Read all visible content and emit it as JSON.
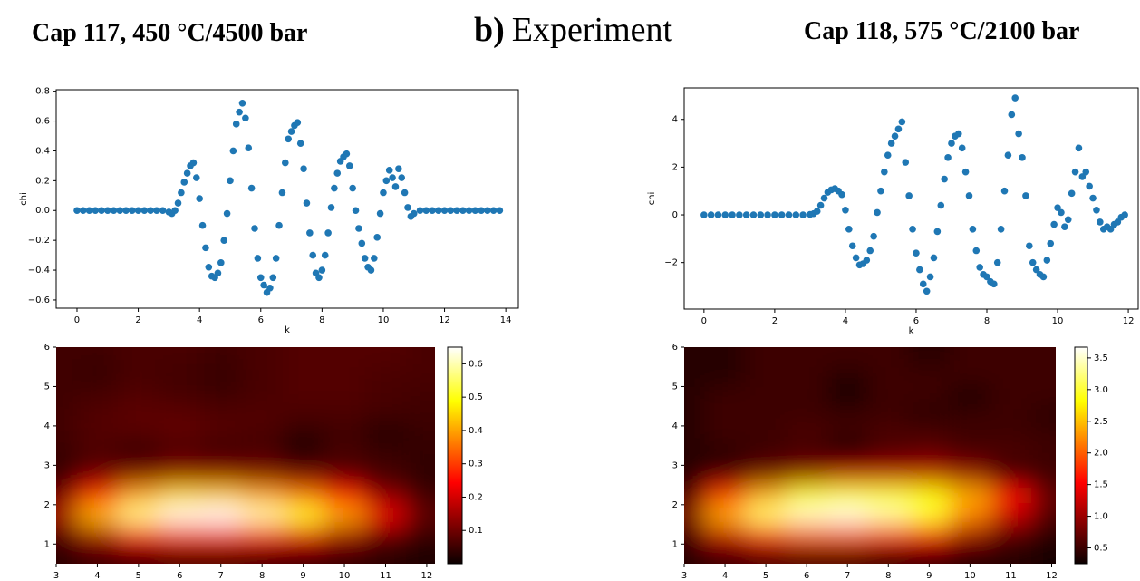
{
  "header": {
    "left": "Cap 117, 450 °C/4500 bar",
    "panel": "b)",
    "center": "Experiment",
    "right": "Cap 118, 575 °C/2100 bar"
  },
  "chart_data": [
    {
      "type": "scatter",
      "xlabel": "k",
      "ylabel": "chi",
      "color": "#1f77b4",
      "x": [
        0,
        0.2,
        0.4,
        0.6,
        0.8,
        1,
        1.2,
        1.4,
        1.6,
        1.8,
        2,
        2.2,
        2.4,
        2.6,
        2.8,
        3,
        3.1,
        3.2,
        3.3,
        3.4,
        3.5,
        3.6,
        3.7,
        3.8,
        3.9,
        4,
        4.1,
        4.2,
        4.3,
        4.4,
        4.5,
        4.6,
        4.7,
        4.8,
        4.9,
        5,
        5.1,
        5.2,
        5.3,
        5.4,
        5.5,
        5.6,
        5.7,
        5.8,
        5.9,
        6,
        6.1,
        6.2,
        6.3,
        6.4,
        6.5,
        6.6,
        6.7,
        6.8,
        6.9,
        7,
        7.1,
        7.2,
        7.3,
        7.4,
        7.5,
        7.6,
        7.7,
        7.8,
        7.9,
        8,
        8.1,
        8.2,
        8.3,
        8.4,
        8.5,
        8.6,
        8.7,
        8.8,
        8.9,
        9,
        9.1,
        9.2,
        9.3,
        9.4,
        9.5,
        9.6,
        9.7,
        9.8,
        9.9,
        10,
        10.1,
        10.2,
        10.3,
        10.4,
        10.5,
        10.6,
        10.7,
        10.8,
        10.9,
        11,
        11.2,
        11.4,
        11.6,
        11.8,
        12,
        12.2,
        12.4,
        12.6,
        12.8,
        13,
        13.2,
        13.4,
        13.6,
        13.8
      ],
      "values": [
        0,
        0,
        0,
        0,
        0,
        0,
        0,
        0,
        0,
        0,
        0,
        0,
        0,
        0,
        0,
        -0.01,
        -0.02,
        0,
        0.05,
        0.12,
        0.19,
        0.25,
        0.3,
        0.32,
        0.22,
        0.08,
        -0.1,
        -0.25,
        -0.38,
        -0.44,
        -0.45,
        -0.42,
        -0.35,
        -0.2,
        -0.02,
        0.2,
        0.4,
        0.58,
        0.66,
        0.72,
        0.62,
        0.42,
        0.15,
        -0.12,
        -0.32,
        -0.45,
        -0.5,
        -0.55,
        -0.52,
        -0.45,
        -0.32,
        -0.1,
        0.12,
        0.32,
        0.48,
        0.53,
        0.57,
        0.59,
        0.45,
        0.28,
        0.05,
        -0.15,
        -0.3,
        -0.42,
        -0.45,
        -0.4,
        -0.3,
        -0.15,
        0.02,
        0.15,
        0.25,
        0.33,
        0.36,
        0.38,
        0.3,
        0.15,
        0,
        -0.12,
        -0.22,
        -0.32,
        -0.38,
        -0.4,
        -0.32,
        -0.18,
        -0.02,
        0.12,
        0.2,
        0.27,
        0.22,
        0.16,
        0.28,
        0.22,
        0.12,
        0.02,
        -0.04,
        -0.02,
        0,
        0,
        0,
        0,
        0,
        0,
        0,
        0,
        0,
        0,
        0,
        0,
        0,
        0
      ],
      "xlim": [
        -0.68,
        14.41
      ],
      "ylim": [
        -0.655,
        0.81
      ],
      "xticks": [
        0,
        2,
        4,
        6,
        8,
        10,
        12,
        14
      ],
      "yticks": [
        {
          "value": -0.6,
          "label": "−0.6"
        },
        {
          "value": -0.4,
          "label": "−0.4"
        },
        {
          "value": -0.2,
          "label": "−0.2"
        },
        {
          "value": 0,
          "label": "0.0"
        },
        0.2,
        0.4,
        0.6,
        0.8
      ]
    },
    {
      "type": "scatter",
      "xlabel": "k",
      "ylabel": "chi",
      "color": "#1f77b4",
      "x": [
        0,
        0.2,
        0.4,
        0.6,
        0.8,
        1,
        1.2,
        1.4,
        1.6,
        1.8,
        2,
        2.2,
        2.4,
        2.6,
        2.8,
        3,
        3.1,
        3.2,
        3.3,
        3.4,
        3.5,
        3.6,
        3.7,
        3.8,
        3.9,
        4,
        4.1,
        4.2,
        4.3,
        4.4,
        4.5,
        4.6,
        4.7,
        4.8,
        4.9,
        5,
        5.1,
        5.2,
        5.3,
        5.4,
        5.5,
        5.6,
        5.7,
        5.8,
        5.9,
        6,
        6.1,
        6.2,
        6.3,
        6.4,
        6.5,
        6.6,
        6.7,
        6.8,
        6.9,
        7,
        7.1,
        7.2,
        7.3,
        7.4,
        7.5,
        7.6,
        7.7,
        7.8,
        7.9,
        8,
        8.1,
        8.2,
        8.3,
        8.4,
        8.5,
        8.6,
        8.7,
        8.8,
        8.9,
        9,
        9.1,
        9.2,
        9.3,
        9.4,
        9.5,
        9.6,
        9.7,
        9.8,
        9.9,
        10,
        10.1,
        10.2,
        10.3,
        10.4,
        10.5,
        10.6,
        10.7,
        10.8,
        10.9,
        11,
        11.1,
        11.2,
        11.3,
        11.4,
        11.5,
        11.6,
        11.7,
        11.8,
        11.9
      ],
      "values": [
        0,
        0,
        0,
        0,
        0,
        0,
        0,
        0,
        0,
        0,
        0,
        0,
        0,
        0,
        0,
        0.02,
        0.05,
        0.15,
        0.4,
        0.7,
        0.95,
        1.05,
        1.1,
        1,
        0.85,
        0.2,
        -0.6,
        -1.3,
        -1.8,
        -2.1,
        -2.05,
        -1.9,
        -1.5,
        -0.9,
        0.1,
        1,
        1.8,
        2.5,
        3,
        3.3,
        3.6,
        3.9,
        2.2,
        0.8,
        -0.6,
        -1.6,
        -2.3,
        -2.9,
        -3.2,
        -2.6,
        -1.8,
        -0.7,
        0.4,
        1.5,
        2.4,
        3,
        3.3,
        3.4,
        2.8,
        1.8,
        0.8,
        -0.6,
        -1.5,
        -2.2,
        -2.5,
        -2.6,
        -2.8,
        -2.9,
        -2,
        -0.6,
        1,
        2.5,
        4.2,
        4.9,
        3.4,
        2.4,
        0.8,
        -1.3,
        -2,
        -2.3,
        -2.5,
        -2.6,
        -1.9,
        -1.2,
        -0.4,
        0.3,
        0.1,
        -0.5,
        -0.2,
        0.9,
        1.8,
        2.8,
        1.6,
        1.8,
        1.2,
        0.7,
        0.2,
        -0.3,
        -0.6,
        -0.5,
        -0.6,
        -0.4,
        -0.3,
        -0.1,
        0
      ],
      "xlim": [
        -0.56,
        12.28
      ],
      "ylim": [
        -3.95,
        5.32
      ],
      "xticks": [
        0,
        2,
        4,
        6,
        8,
        10,
        12
      ],
      "yticks": [
        {
          "value": -2,
          "label": "−2"
        },
        0,
        2,
        4
      ]
    },
    {
      "type": "heatmap",
      "colormap": "hot",
      "x": [
        3,
        4,
        5,
        6,
        7,
        8,
        9,
        10,
        11,
        12
      ],
      "y": [
        0.75,
        1.25,
        1.75,
        2.25,
        2.75,
        3.25,
        3.75,
        4.25,
        4.75,
        5.25,
        5.75
      ],
      "values": [
        [
          0.03,
          0.05,
          0.06,
          0.07,
          0.07,
          0.06,
          0.05,
          0.04,
          0.03,
          0.02
        ],
        [
          0.06,
          0.15,
          0.25,
          0.3,
          0.3,
          0.28,
          0.22,
          0.15,
          0.08,
          0.04
        ],
        [
          0.15,
          0.42,
          0.58,
          0.64,
          0.65,
          0.6,
          0.52,
          0.4,
          0.22,
          0.08
        ],
        [
          0.1,
          0.28,
          0.4,
          0.45,
          0.44,
          0.4,
          0.35,
          0.25,
          0.12,
          0.05
        ],
        [
          0.04,
          0.1,
          0.12,
          0.14,
          0.14,
          0.12,
          0.1,
          0.08,
          0.05,
          0.03
        ],
        [
          0.04,
          0.06,
          0.03,
          0.06,
          0.04,
          0.06,
          0.02,
          0.06,
          0.05,
          0.04
        ],
        [
          0.05,
          0.07,
          0.07,
          0.08,
          0.07,
          0.06,
          0.03,
          0.05,
          0.02,
          0.04
        ],
        [
          0.05,
          0.07,
          0.08,
          0.08,
          0.07,
          0.07,
          0.06,
          0.06,
          0.05,
          0.05
        ],
        [
          0.05,
          0.06,
          0.07,
          0.06,
          0.05,
          0.06,
          0.07,
          0.07,
          0.06,
          0.05
        ],
        [
          0.05,
          0.04,
          0.06,
          0.05,
          0.04,
          0.06,
          0.07,
          0.07,
          0.06,
          0.06
        ],
        [
          0.05,
          0.05,
          0.06,
          0.06,
          0.05,
          0.06,
          0.07,
          0.07,
          0.07,
          0.06
        ]
      ],
      "xlim": [
        3,
        12.2
      ],
      "ylim": [
        0.5,
        6
      ],
      "xticks": [
        3,
        4,
        5,
        6,
        7,
        8,
        9,
        10,
        11,
        12
      ],
      "yticks": [
        1,
        2,
        3,
        4,
        5,
        6
      ],
      "clim": [
        0,
        0.65
      ],
      "cticks": [
        0.1,
        0.2,
        0.3,
        0.4,
        0.5,
        0.6
      ]
    },
    {
      "type": "heatmap",
      "colormap": "hot",
      "x": [
        3,
        4,
        5,
        6,
        7,
        8,
        9,
        10,
        11,
        12
      ],
      "y": [
        0.75,
        1.25,
        1.75,
        2.25,
        2.75,
        3.25,
        3.75,
        4.25,
        4.75,
        5.25,
        5.75
      ],
      "values": [
        [
          0.4,
          0.5,
          0.6,
          0.6,
          0.6,
          0.5,
          0.5,
          0.4,
          0.4,
          0.3
        ],
        [
          0.5,
          1.2,
          1.8,
          2,
          2,
          1.8,
          1.5,
          1,
          0.6,
          0.4
        ],
        [
          0.8,
          2.4,
          3.2,
          3.5,
          3.6,
          3.4,
          3,
          2.2,
          1.2,
          0.6
        ],
        [
          0.6,
          1.8,
          2.4,
          2.8,
          3,
          3,
          2.8,
          2.4,
          1.6,
          0.7
        ],
        [
          0.4,
          0.6,
          0.8,
          1,
          1.2,
          1.2,
          1.2,
          1,
          0.5,
          0.5
        ],
        [
          0.4,
          0.4,
          0.5,
          0.5,
          0.3,
          0.6,
          0.7,
          0.6,
          0.6,
          0.5
        ],
        [
          0.4,
          0.5,
          0.5,
          0.6,
          0.5,
          0.6,
          0.6,
          0.5,
          0.5,
          0.5
        ],
        [
          0.4,
          0.5,
          0.5,
          0.5,
          0.5,
          0.5,
          0.4,
          0.5,
          0.5,
          0.4
        ],
        [
          0.4,
          0.5,
          0.5,
          0.5,
          0.3,
          0.5,
          0.5,
          0.3,
          0.5,
          0.5
        ],
        [
          0.4,
          0.4,
          0.5,
          0.5,
          0.4,
          0.5,
          0.5,
          0.5,
          0.5,
          0.5
        ],
        [
          0.4,
          0.4,
          0.5,
          0.5,
          0.5,
          0.5,
          0.4,
          0.5,
          0.5,
          0.5
        ]
      ],
      "xlim": [
        3,
        12.1
      ],
      "ylim": [
        0.5,
        6
      ],
      "xticks": [
        3,
        4,
        5,
        6,
        7,
        8,
        9,
        10,
        11,
        12
      ],
      "yticks": [
        1,
        2,
        3,
        4,
        5,
        6
      ],
      "clim": [
        0.25,
        3.67
      ],
      "cticks": [
        0.5,
        {
          "value": 1,
          "label": "1.0"
        },
        1.5,
        {
          "value": 2,
          "label": "2.0"
        },
        2.5,
        {
          "value": 3,
          "label": "3.0"
        },
        3.5
      ]
    }
  ]
}
